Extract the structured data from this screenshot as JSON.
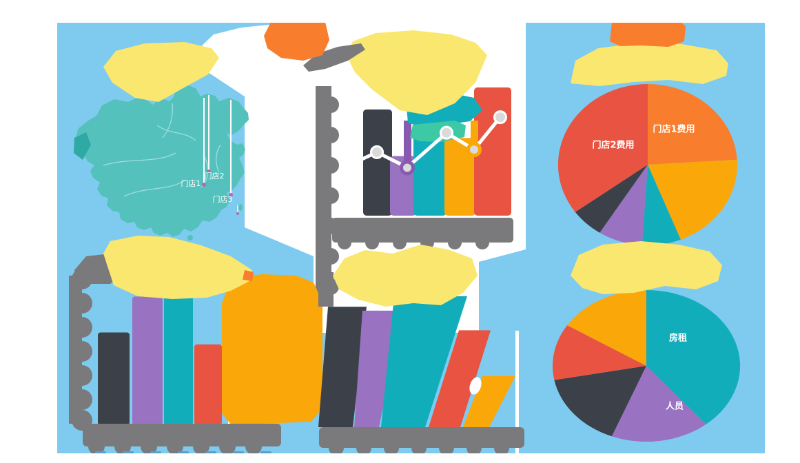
{
  "palette": {
    "background": "#7ECBEF",
    "panel": "#FFFFFF",
    "yellow": "#FAE76F",
    "orange": "#F87E2E",
    "amber": "#FAA70A",
    "red": "#E85441",
    "teal": "#12ADBB",
    "seafoam": "#3DC9A6",
    "map_teal": "#55C1BD",
    "map_teal_dark": "#2FA9A4",
    "map_border": "#9FDEDB",
    "purple": "#9973C2",
    "purple_dark": "#8859B0",
    "dark": "#3C4049",
    "gray": "#7A7A7C",
    "axis_dash_blue": "#5B9FC7",
    "marker_fill": "#DADADA",
    "label_text": "#FFFFFF",
    "map_marker_dot": "#AF6CB3"
  },
  "chart_data": [
    {
      "id": "store-locations-map",
      "type": "map",
      "region": "china",
      "markers": [
        {
          "label": "门店1"
        },
        {
          "label": "门店2"
        },
        {
          "label": "门店3"
        }
      ]
    },
    {
      "id": "top-center-combo-chart",
      "type": "bar",
      "series": [
        {
          "name": "bars",
          "values": [
            82,
            46,
            62,
            60,
            99
          ]
        }
      ],
      "line": {
        "values": [
          36,
          49,
          37,
          64,
          51,
          76
        ]
      },
      "ylim": [
        0,
        100
      ],
      "grid": false,
      "legend": "none"
    },
    {
      "id": "store-expense-pie",
      "type": "pie",
      "slices": [
        {
          "label": "门店1费用",
          "pct": 24,
          "color": "orange"
        },
        {
          "label": "",
          "pct": 20,
          "color": "amber"
        },
        {
          "label": "",
          "pct": 7,
          "color": "teal"
        },
        {
          "label": "",
          "pct": 8,
          "color": "purple"
        },
        {
          "label": "",
          "pct": 6,
          "color": "dark"
        },
        {
          "label": "门店2费用",
          "pct": 35,
          "color": "red"
        }
      ]
    },
    {
      "id": "bottom-left-bar-chart",
      "type": "bar",
      "series": [
        {
          "name": "bars",
          "values": [
            62,
            86,
            88,
            54,
            99
          ]
        }
      ],
      "ylim": [
        0,
        100
      ],
      "grid": false
    },
    {
      "id": "bottom-center-slanted-bar-chart",
      "type": "bar",
      "series": [
        {
          "name": "bars",
          "values": [
            92,
            89,
            100,
            74,
            39
          ]
        }
      ],
      "ylim": [
        0,
        100
      ],
      "grid": false
    },
    {
      "id": "expense-category-pie",
      "type": "pie",
      "slices": [
        {
          "label": "房租",
          "pct": 39,
          "color": "teal"
        },
        {
          "label": "人员",
          "pct": 17,
          "color": "purple"
        },
        {
          "label": "",
          "pct": 16,
          "color": "dark"
        },
        {
          "label": "",
          "pct": 12,
          "color": "red"
        },
        {
          "label": "",
          "pct": 16,
          "color": "amber"
        }
      ]
    }
  ]
}
